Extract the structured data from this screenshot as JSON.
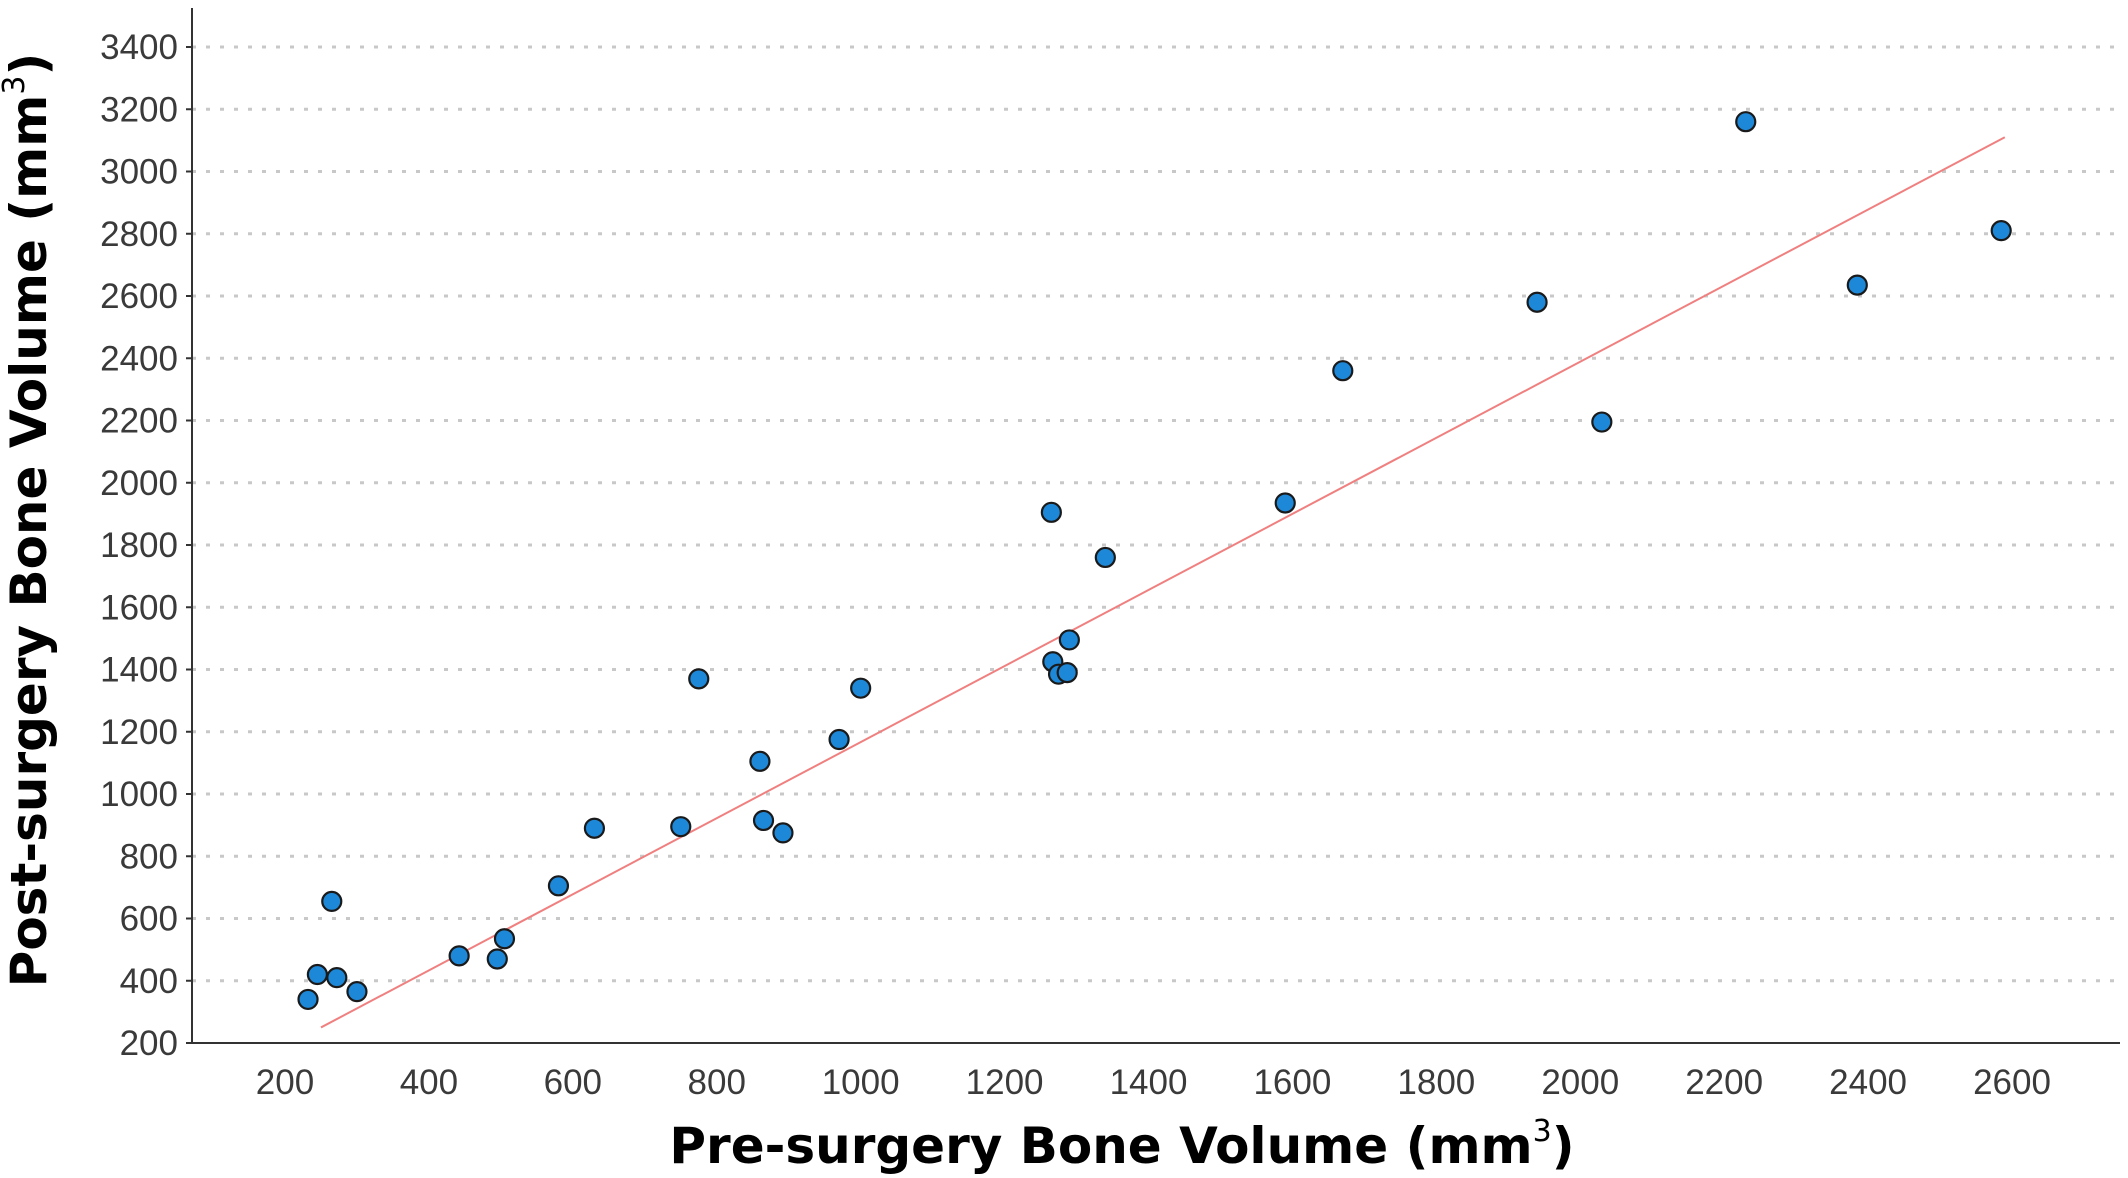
{
  "chart_data": {
    "type": "scatter",
    "title": "",
    "xlabel": "Pre-surgery Bone Volume (mm",
    "ylabel": "Post-surgery Bone Volume (mm",
    "label_superscript": "3",
    "label_close": ")",
    "xlim": [
      100,
      2700
    ],
    "ylim": [
      200,
      3500
    ],
    "x_ticks": [
      200,
      400,
      600,
      800,
      1000,
      1200,
      1400,
      1600,
      1800,
      2000,
      2200,
      2400,
      2600
    ],
    "y_ticks": [
      200,
      400,
      600,
      800,
      1000,
      1200,
      1400,
      1600,
      1800,
      2000,
      2200,
      2400,
      2600,
      2800,
      3000,
      3200,
      3400
    ],
    "grid": "horizontal-dotted",
    "legend": "none",
    "marker_color": "#1e88d8",
    "marker_edge_color": "#1a1a1a",
    "fit_line_color": "#f08080",
    "fit_line": {
      "x": [
        250,
        2590
      ],
      "y": [
        250,
        3110
      ]
    },
    "points": [
      {
        "x": 232,
        "y": 340
      },
      {
        "x": 245,
        "y": 420
      },
      {
        "x": 265,
        "y": 655
      },
      {
        "x": 272,
        "y": 410
      },
      {
        "x": 300,
        "y": 365
      },
      {
        "x": 442,
        "y": 480
      },
      {
        "x": 495,
        "y": 470
      },
      {
        "x": 505,
        "y": 535
      },
      {
        "x": 580,
        "y": 705
      },
      {
        "x": 630,
        "y": 890
      },
      {
        "x": 750,
        "y": 895
      },
      {
        "x": 775,
        "y": 1370
      },
      {
        "x": 860,
        "y": 1105
      },
      {
        "x": 865,
        "y": 915
      },
      {
        "x": 892,
        "y": 875
      },
      {
        "x": 970,
        "y": 1175
      },
      {
        "x": 1000,
        "y": 1340
      },
      {
        "x": 1265,
        "y": 1905
      },
      {
        "x": 1267,
        "y": 1425
      },
      {
        "x": 1275,
        "y": 1385
      },
      {
        "x": 1287,
        "y": 1390
      },
      {
        "x": 1290,
        "y": 1495
      },
      {
        "x": 1340,
        "y": 1760
      },
      {
        "x": 1590,
        "y": 1935
      },
      {
        "x": 1670,
        "y": 2360
      },
      {
        "x": 1940,
        "y": 2580
      },
      {
        "x": 2030,
        "y": 2195
      },
      {
        "x": 2230,
        "y": 3160
      },
      {
        "x": 2385,
        "y": 2635
      },
      {
        "x": 2585,
        "y": 2810
      }
    ]
  }
}
